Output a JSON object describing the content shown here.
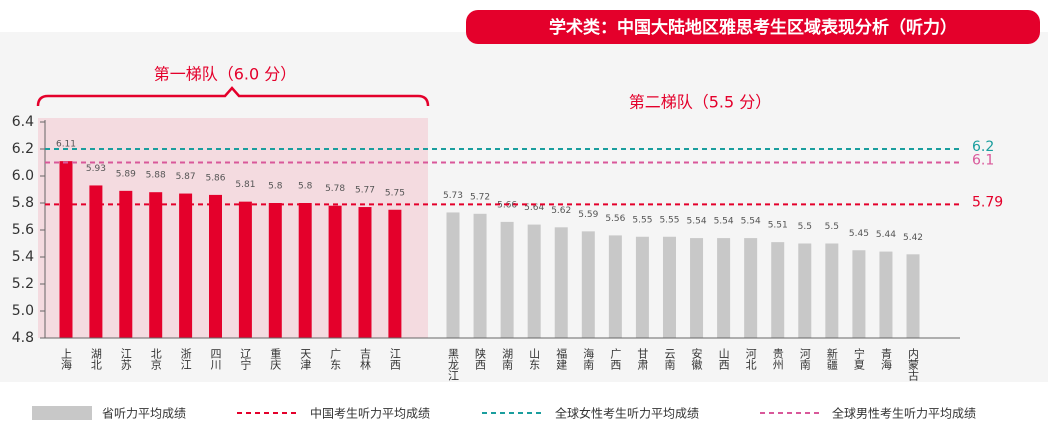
{
  "chart_data": {
    "type": "bar",
    "title": "学术类：中国大陆地区雅思考生区域表现分析（听力）",
    "tier_labels": [
      "第一梯队（6.0 分）",
      "第二梯队（5.5 分）"
    ],
    "categories": [
      "上海",
      "湖北",
      "江苏",
      "北京",
      "浙江",
      "四川",
      "辽宁",
      "重庆",
      "天津",
      "广东",
      "吉林",
      "江西",
      "黑龙江",
      "陕西",
      "湖南",
      "山东",
      "福建",
      "海南",
      "广西",
      "甘肃",
      "云南",
      "安徽",
      "山西",
      "河北",
      "贵州",
      "河南",
      "新疆",
      "宁夏",
      "青海",
      "内蒙古"
    ],
    "values": [
      6.11,
      5.93,
      5.89,
      5.88,
      5.87,
      5.86,
      5.81,
      5.8,
      5.8,
      5.78,
      5.77,
      5.75,
      5.73,
      5.72,
      5.66,
      5.64,
      5.62,
      5.59,
      5.56,
      5.55,
      5.55,
      5.54,
      5.54,
      5.54,
      5.51,
      5.5,
      5.5,
      5.45,
      5.44,
      5.42
    ],
    "bar_colors": [
      "#e4002b",
      "#e4002b",
      "#e4002b",
      "#e4002b",
      "#e4002b",
      "#e4002b",
      "#e4002b",
      "#e4002b",
      "#e4002b",
      "#e4002b",
      "#e4002b",
      "#e4002b",
      "#c8c8c8",
      "#c8c8c8",
      "#c8c8c8",
      "#c8c8c8",
      "#c8c8c8",
      "#c8c8c8",
      "#c8c8c8",
      "#c8c8c8",
      "#c8c8c8",
      "#c8c8c8",
      "#c8c8c8",
      "#c8c8c8",
      "#c8c8c8",
      "#c8c8c8",
      "#c8c8c8",
      "#c8c8c8",
      "#c8c8c8",
      "#c8c8c8"
    ],
    "bar_legend": "省听力平均成绩",
    "reference_lines": [
      {
        "name": "中国考生听力平均成绩",
        "value": 5.79,
        "color": "#e4002b"
      },
      {
        "name": "全球女性考生听力平均成绩",
        "value": 6.2,
        "color": "#1a9e9e"
      },
      {
        "name": "全球男性考生听力平均成绩",
        "value": 6.1,
        "color": "#d9589a"
      }
    ],
    "ylim": [
      4.8,
      6.4
    ],
    "yticks": [
      4.8,
      {
        "value": 5.0,
        "label": "5.0"
      },
      5.2,
      5.4,
      5.6,
      5.8,
      {
        "value": 6.0,
        "label": "6.0"
      },
      6.2,
      6.4
    ]
  }
}
